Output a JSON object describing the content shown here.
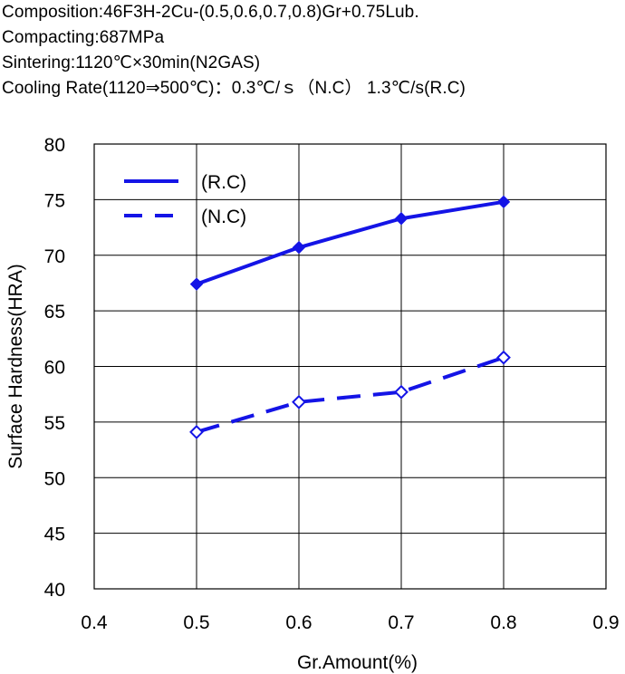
{
  "header": {
    "lines": [
      "Composition:46F3H-2Cu-(0.5,0.6,0.7,0.8)Gr+0.75Lub.",
      "Compacting:687MPa",
      "Sintering:1120℃×30min(N2GAS)",
      "Cooling Rate(1120⇒500℃)：0.3℃/ｓ（N.C） 1.3℃/s(R.C)"
    ]
  },
  "chart_data": {
    "type": "line",
    "xlabel": "Gr.Amount(%)",
    "ylabel": "Surface Hardness(HRA)",
    "xlim": [
      0.4,
      0.9
    ],
    "ylim": [
      40,
      80
    ],
    "xticks": [
      "0.4",
      "0.5",
      "0.6",
      "0.7",
      "0.8",
      "0.9"
    ],
    "yticks": [
      "40",
      "45",
      "50",
      "55",
      "60",
      "65",
      "70",
      "75",
      "80"
    ],
    "grid": true,
    "legend_position": "top-left",
    "x": [
      0.5,
      0.6,
      0.7,
      0.8
    ],
    "series": [
      {
        "name": "(R.C)",
        "values": [
          67.4,
          70.7,
          73.3,
          74.8
        ],
        "style": "solid",
        "marker": "filled-diamond",
        "color": "#1414e6"
      },
      {
        "name": "(N.C)",
        "values": [
          54.1,
          56.8,
          57.7,
          60.8
        ],
        "style": "dashed",
        "marker": "open-diamond",
        "color": "#1414e6"
      }
    ]
  }
}
